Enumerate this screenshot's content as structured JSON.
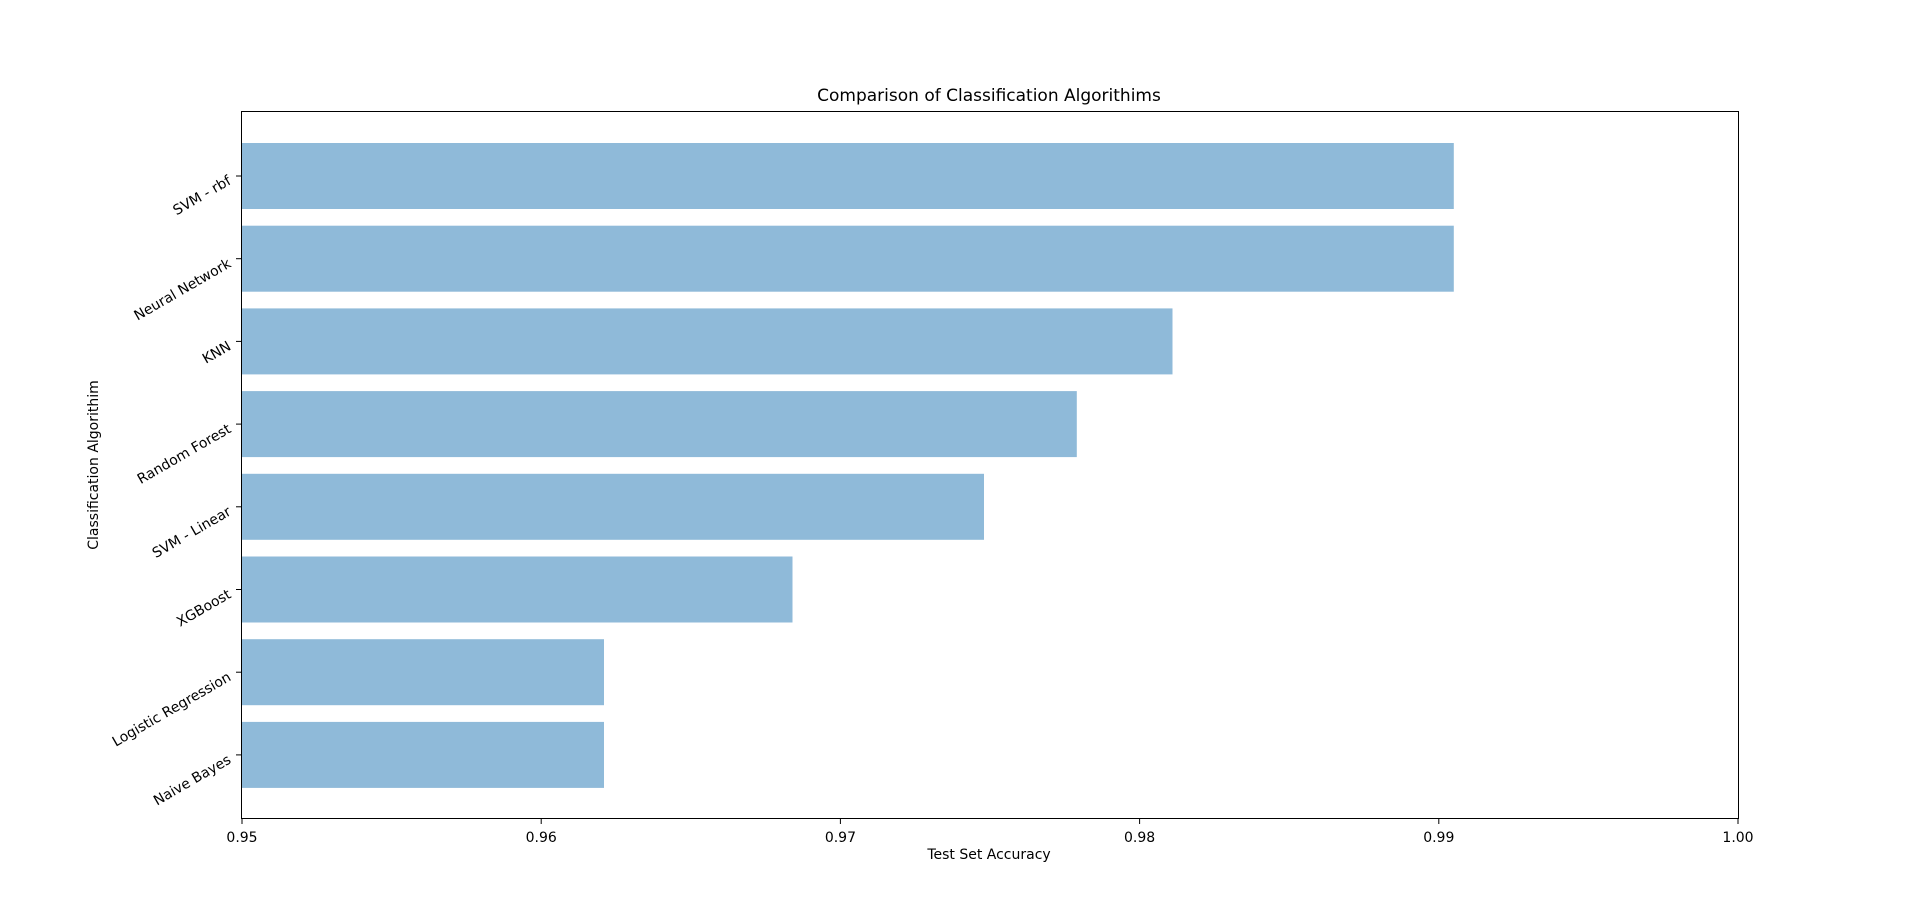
{
  "chart_data": {
    "type": "bar",
    "orientation": "horizontal",
    "title": "Comparison of Classification Algorithims",
    "xlabel": "Test Set Accuracy",
    "ylabel": "Classification Algorithim",
    "xlim": [
      0.95,
      1.0
    ],
    "xticks": [
      "0.95",
      "0.96",
      "0.97",
      "0.98",
      "0.99",
      "1.00"
    ],
    "xtick_values": [
      0.95,
      0.96,
      0.97,
      0.98,
      0.99,
      1.0
    ],
    "categories": [
      "SVM - rbf",
      "Neural Network",
      "KNN",
      "Random Forest",
      "SVM - Linear",
      "XGBoost",
      "Logistic Regression",
      "Naive Bayes"
    ],
    "values": [
      0.9905,
      0.9905,
      0.9811,
      0.9779,
      0.9748,
      0.9684,
      0.9621,
      0.9621
    ],
    "bar_color": "#8fbad9",
    "grid": false,
    "legend": "none"
  }
}
